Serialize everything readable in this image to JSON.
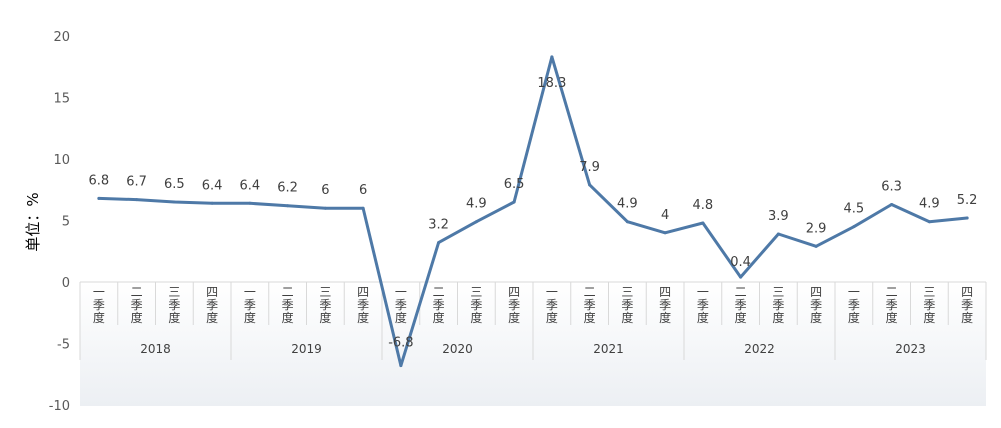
{
  "chart_data": {
    "type": "line",
    "title": "",
    "ylabel": "单位：%",
    "xlabel": "",
    "ylim": [
      -10,
      20
    ],
    "yticks": [
      20,
      15,
      10,
      5,
      0,
      -5,
      -10
    ],
    "grid": false,
    "line_color": "#4e79a7",
    "years": [
      "2018",
      "2019",
      "2020",
      "2021",
      "2022",
      "2023"
    ],
    "quarters": [
      "一季度",
      "二季度",
      "三季度",
      "四季度"
    ],
    "series": [
      {
        "values": [
          6.8,
          6.7,
          6.5,
          6.4,
          6.4,
          6.2,
          6,
          6,
          -6.8,
          3.2,
          4.9,
          6.5,
          18.3,
          7.9,
          4.9,
          4,
          4.8,
          0.4,
          3.9,
          2.9,
          4.5,
          6.3,
          4.9,
          5.2
        ],
        "labels": [
          "6.8",
          "6.7",
          "6.5",
          "6.4",
          "6.4",
          "6.2",
          "6",
          "6",
          "-6.8",
          "3.2",
          "4.9",
          "6.5",
          "18.3",
          "7.9",
          "4.9",
          "4",
          "4.8",
          "0.4",
          "3.9",
          "2.9",
          "4.5",
          "6.3",
          "4.9",
          "5.2"
        ]
      }
    ]
  }
}
